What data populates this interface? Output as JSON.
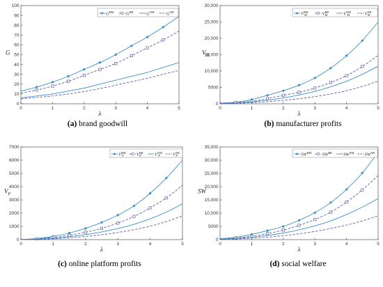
{
  "colors": {
    "line": "#3a8fc9",
    "dash": "#5a5fa8",
    "axis": "#333333"
  },
  "chart_data": [
    {
      "type": "line",
      "panel": "a",
      "caption_label": "(a)",
      "caption_text": " brand goodwill",
      "xlabel": "λ",
      "ylabel": "G",
      "xlim": [
        0,
        5
      ],
      "ylim": [
        0,
        100
      ],
      "yticks": [
        "0",
        "10",
        "20",
        "30",
        "40",
        "50",
        "60",
        "70",
        "80",
        "90",
        "100"
      ],
      "xticks": [
        "0",
        "1",
        "2",
        "3",
        "4",
        "5"
      ],
      "legend": [
        "G^{BM}",
        "G^{BR}",
        "G^{NM}",
        "G^{NR}"
      ],
      "series": [
        {
          "name": "G^{BM}",
          "style": "solid-dot",
          "x": [
            0,
            0.5,
            1,
            1.5,
            2,
            2.5,
            3,
            3.5,
            4,
            4.5,
            5
          ],
          "y": [
            13,
            17,
            22,
            28,
            35,
            42,
            50,
            59,
            68,
            78,
            89
          ]
        },
        {
          "name": "G^{BR}",
          "style": "dash-square",
          "x": [
            0,
            0.5,
            1,
            1.5,
            2,
            2.5,
            3,
            3.5,
            4,
            4.5,
            5
          ],
          "y": [
            11,
            14,
            18,
            23,
            29,
            35,
            41,
            49,
            57,
            65,
            74
          ]
        },
        {
          "name": "G^{NM}",
          "style": "solid",
          "x": [
            0,
            0.5,
            1,
            1.5,
            2,
            2.5,
            3,
            3.5,
            4,
            4.5,
            5
          ],
          "y": [
            6,
            8,
            10,
            13,
            16,
            20,
            24,
            28,
            32,
            37,
            42
          ]
        },
        {
          "name": "G^{NR}",
          "style": "dash",
          "x": [
            0,
            0.5,
            1,
            1.5,
            2,
            2.5,
            3,
            3.5,
            4,
            4.5,
            5
          ],
          "y": [
            5,
            6.5,
            8,
            10,
            12.5,
            15.5,
            19,
            22.5,
            26,
            30,
            34
          ]
        }
      ]
    },
    {
      "type": "line",
      "panel": "b",
      "caption_label": "(b)",
      "caption_text": " manufacturer profits",
      "xlabel": "λ",
      "ylabel": "V_M",
      "xlim": [
        0,
        5
      ],
      "ylim": [
        0,
        30000
      ],
      "yticks": [
        "0",
        "5000",
        "10,000",
        "15,000",
        "20,000",
        "25,000",
        "30,000"
      ],
      "xticks": [
        "0",
        "1",
        "2",
        "3",
        "4",
        "5"
      ],
      "legend": [
        "V_M^{BM}",
        "V_M^{BR}",
        "V_M^{NM}",
        "V_M^{NR}"
      ],
      "series": [
        {
          "name": "V_M^{BM}",
          "style": "solid-dot",
          "x": [
            0,
            0.5,
            1,
            1.5,
            2,
            2.5,
            3,
            3.5,
            4,
            4.5,
            5
          ],
          "y": [
            200,
            500,
            1300,
            2600,
            4000,
            5700,
            7900,
            10900,
            14700,
            19300,
            25000
          ]
        },
        {
          "name": "V_M^{BR}",
          "style": "dash-square",
          "x": [
            0,
            0.5,
            1,
            1.5,
            2,
            2.5,
            3,
            3.5,
            4,
            4.5,
            5
          ],
          "y": [
            150,
            350,
            800,
            1600,
            2600,
            3500,
            4800,
            6500,
            8600,
            11400,
            14800
          ]
        },
        {
          "name": "V_M^{NM}",
          "style": "solid",
          "x": [
            0,
            0.5,
            1,
            1.5,
            2,
            2.5,
            3,
            3.5,
            4,
            4.5,
            5
          ],
          "y": [
            100,
            250,
            600,
            1100,
            1800,
            2700,
            3800,
            5200,
            6900,
            9000,
            11500
          ]
        },
        {
          "name": "V_M^{NR}",
          "style": "dash",
          "x": [
            0,
            0.5,
            1,
            1.5,
            2,
            2.5,
            3,
            3.5,
            4,
            4.5,
            5
          ],
          "y": [
            50,
            150,
            350,
            650,
            1050,
            1550,
            2200,
            3000,
            4000,
            5300,
            6900
          ]
        }
      ]
    },
    {
      "type": "line",
      "panel": "c",
      "caption_label": "(c)",
      "caption_text": " online platform profits",
      "xlabel": "λ",
      "ylabel": "V_P",
      "xlim": [
        0,
        5
      ],
      "ylim": [
        0,
        7000
      ],
      "yticks": [
        "0",
        "1000",
        "2000",
        "3000",
        "4000",
        "5000",
        "6000",
        "7000"
      ],
      "xticks": [
        "0",
        "1",
        "2",
        "3",
        "4",
        "5"
      ],
      "legend": [
        "V_P^{BM}",
        "V_P^{BR}",
        "V_P^{NM}",
        "V_P^{NR}"
      ],
      "series": [
        {
          "name": "V_P^{BM}",
          "style": "solid-dot",
          "x": [
            0,
            0.5,
            1,
            1.5,
            2,
            2.5,
            3,
            3.5,
            4,
            4.5,
            5
          ],
          "y": [
            10,
            80,
            250,
            500,
            850,
            1300,
            1850,
            2550,
            3500,
            4650,
            6000
          ]
        },
        {
          "name": "V_P^{BR}",
          "style": "dash-square",
          "x": [
            0,
            0.5,
            1,
            1.5,
            2,
            2.5,
            3,
            3.5,
            4,
            4.5,
            5
          ],
          "y": [
            10,
            60,
            170,
            330,
            560,
            850,
            1250,
            1750,
            2400,
            3150,
            4100
          ]
        },
        {
          "name": "V_P^{NM}",
          "style": "solid",
          "x": [
            0,
            0.5,
            1,
            1.5,
            2,
            2.5,
            3,
            3.5,
            4,
            4.5,
            5
          ],
          "y": [
            5,
            40,
            110,
            220,
            380,
            580,
            840,
            1160,
            1570,
            2080,
            2700
          ]
        },
        {
          "name": "V_P^{NR}",
          "style": "dash",
          "x": [
            0,
            0.5,
            1,
            1.5,
            2,
            2.5,
            3,
            3.5,
            4,
            4.5,
            5
          ],
          "y": [
            5,
            25,
            70,
            140,
            240,
            370,
            540,
            750,
            1020,
            1360,
            1800
          ]
        }
      ]
    },
    {
      "type": "line",
      "panel": "d",
      "caption_label": "(d)",
      "caption_text": " social welfare",
      "xlabel": "λ",
      "ylabel": "SW",
      "xlim": [
        0,
        5
      ],
      "ylim": [
        0,
        35000
      ],
      "yticks": [
        "0",
        "5000",
        "10,000",
        "15,000",
        "20,000",
        "25,000",
        "30,000",
        "35,000"
      ],
      "xticks": [
        "0",
        "1",
        "2",
        "3",
        "4",
        "5"
      ],
      "legend": [
        "SW^{BM}",
        "SW^{BR}",
        "SW^{NM}",
        "SW^{NR}"
      ],
      "series": [
        {
          "name": "SW^{BM}",
          "style": "solid-dot",
          "x": [
            0,
            0.5,
            1,
            1.5,
            2,
            2.5,
            3,
            3.5,
            4,
            4.5,
            5
          ],
          "y": [
            300,
            900,
            2000,
            3400,
            5000,
            7300,
            10200,
            14000,
            19000,
            25200,
            33000
          ]
        },
        {
          "name": "SW^{BR}",
          "style": "dash-square",
          "x": [
            0,
            0.5,
            1,
            1.5,
            2,
            2.5,
            3,
            3.5,
            4,
            4.5,
            5
          ],
          "y": [
            250,
            600,
            1300,
            2300,
            3600,
            5400,
            7600,
            10400,
            14200,
            18800,
            24200
          ]
        },
        {
          "name": "SW^{NM}",
          "style": "solid",
          "x": [
            0,
            0.5,
            1,
            1.5,
            2,
            2.5,
            3,
            3.5,
            4,
            4.5,
            5
          ],
          "y": [
            200,
            450,
            900,
            1600,
            2500,
            3700,
            5200,
            7100,
            9500,
            12300,
            15500
          ]
        },
        {
          "name": "SW^{NR}",
          "style": "dash",
          "x": [
            0,
            0.5,
            1,
            1.5,
            2,
            2.5,
            3,
            3.5,
            4,
            4.5,
            5
          ],
          "y": [
            100,
            250,
            550,
            950,
            1500,
            2200,
            3100,
            4200,
            5500,
            7100,
            9000
          ]
        }
      ]
    }
  ]
}
